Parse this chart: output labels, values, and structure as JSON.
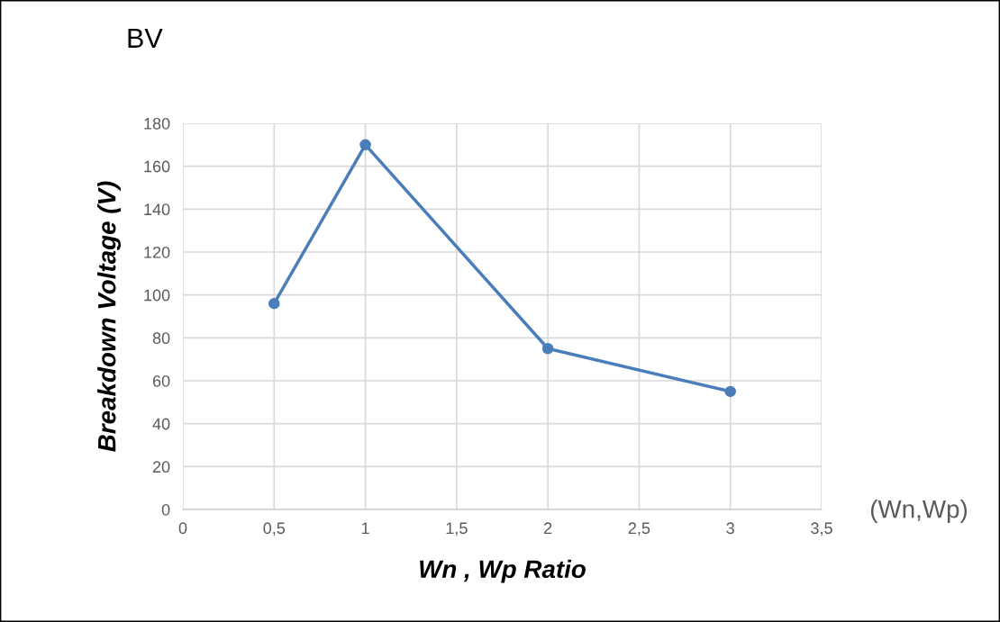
{
  "chart_data": {
    "type": "line",
    "title": "BV",
    "xlabel": "Wn , Wp Ratio",
    "ylabel": "Breakdown Voltage (V)",
    "annotations": [
      "(Wn,Wp)"
    ],
    "x": [
      0.5,
      1,
      2,
      3
    ],
    "series": [
      {
        "color": "#4a7ebb",
        "values": [
          96,
          170,
          75,
          55
        ]
      }
    ],
    "xlim": [
      0,
      3.5
    ],
    "xticks": [
      0,
      {
        "value": 0.5,
        "label": "0,5"
      },
      1,
      {
        "value": 1.5,
        "label": "1,5"
      },
      2,
      {
        "value": 2.5,
        "label": "2,5"
      },
      3,
      {
        "value": 3.5,
        "label": "3,5"
      }
    ],
    "ylim": [
      0,
      180
    ],
    "yticks": [
      0,
      20,
      40,
      60,
      80,
      100,
      120,
      140,
      160,
      180
    ],
    "grid": true,
    "marker": "circle",
    "line_style": "solid"
  }
}
